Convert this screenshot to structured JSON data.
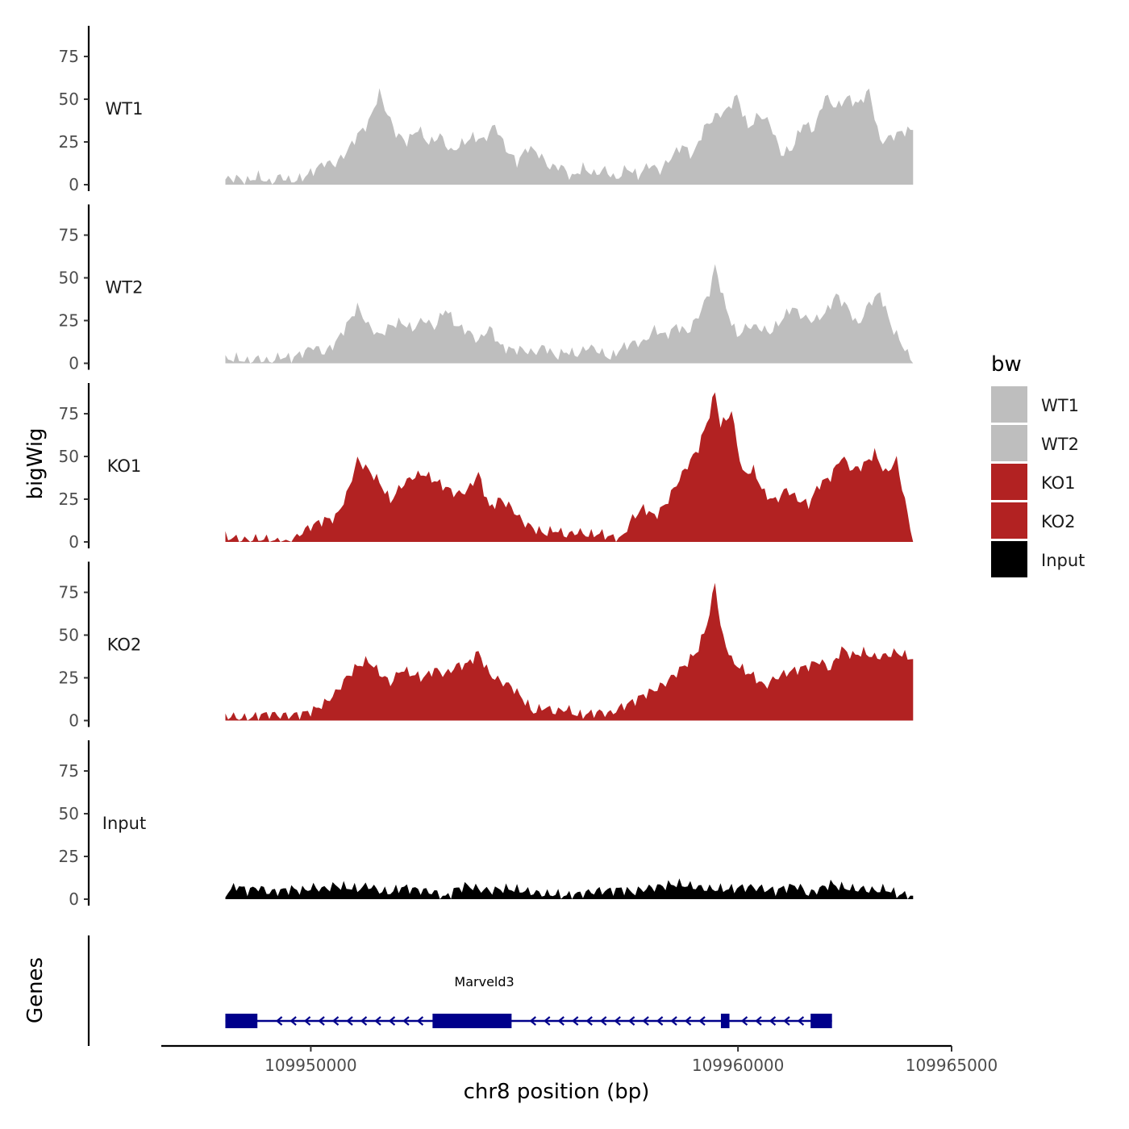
{
  "chart_data": {
    "type": "area",
    "title": "",
    "ylabel": "bigWig",
    "xlabel": "chr8 position (bp)",
    "genes_label": "Genes",
    "xlim": [
      109946500,
      109965000
    ],
    "data_range": [
      109948000,
      109964100
    ],
    "x_ticks": [
      109950000,
      109960000,
      109965000
    ],
    "x_tick_labels": [
      "109950000",
      "109960000",
      "109965000"
    ],
    "ylim": [
      0,
      92
    ],
    "y_ticks": [
      0,
      25,
      50,
      75
    ],
    "y_tick_labels": [
      "0",
      "25",
      "50",
      "75"
    ],
    "colors": {
      "WT": "#bebebe",
      "KO": "#b22222",
      "Input": "#000000",
      "gene": "#00008b"
    },
    "series": [
      {
        "name": "WT1",
        "color": "#bebebe",
        "profile": [
          [
            0,
            3
          ],
          [
            2,
            4
          ],
          [
            4,
            2
          ],
          [
            6,
            5
          ],
          [
            8,
            1
          ],
          [
            10,
            5
          ],
          [
            12,
            2
          ],
          [
            14,
            4
          ],
          [
            16,
            8
          ],
          [
            18,
            13
          ],
          [
            20,
            12
          ],
          [
            22,
            19
          ],
          [
            24,
            29
          ],
          [
            26,
            36
          ],
          [
            28,
            54
          ],
          [
            29,
            45
          ],
          [
            31,
            30
          ],
          [
            33,
            25
          ],
          [
            35,
            33
          ],
          [
            37,
            24
          ],
          [
            39,
            29
          ],
          [
            41,
            19
          ],
          [
            43,
            24
          ],
          [
            45,
            28
          ],
          [
            47,
            26
          ],
          [
            49,
            35
          ],
          [
            51,
            21
          ],
          [
            53,
            13
          ],
          [
            55,
            22
          ],
          [
            57,
            18
          ],
          [
            59,
            10
          ],
          [
            61,
            11
          ],
          [
            63,
            4
          ],
          [
            65,
            10
          ],
          [
            67,
            6
          ],
          [
            69,
            9
          ],
          [
            71,
            3
          ],
          [
            73,
            10
          ],
          [
            75,
            5
          ],
          [
            77,
            12
          ],
          [
            79,
            8
          ],
          [
            81,
            16
          ],
          [
            83,
            23
          ],
          [
            85,
            17
          ],
          [
            87,
            33
          ],
          [
            89,
            40
          ],
          [
            91,
            43
          ],
          [
            93,
            52
          ],
          [
            95,
            33
          ],
          [
            97,
            41
          ],
          [
            99,
            36
          ],
          [
            101,
            18
          ],
          [
            103,
            21
          ],
          [
            105,
            36
          ],
          [
            107,
            32
          ],
          [
            109,
            52
          ],
          [
            111,
            45
          ],
          [
            113,
            51
          ],
          [
            115,
            47
          ],
          [
            117,
            55
          ],
          [
            119,
            25
          ],
          [
            121,
            28
          ],
          [
            123,
            31
          ],
          [
            125,
            32
          ]
        ]
      },
      {
        "name": "WT2",
        "color": "#bebebe",
        "profile": [
          [
            0,
            2
          ],
          [
            2,
            3
          ],
          [
            4,
            1
          ],
          [
            6,
            3
          ],
          [
            8,
            1
          ],
          [
            10,
            4
          ],
          [
            12,
            3
          ],
          [
            14,
            6
          ],
          [
            16,
            10
          ],
          [
            18,
            6
          ],
          [
            20,
            12
          ],
          [
            22,
            22
          ],
          [
            24,
            33
          ],
          [
            26,
            22
          ],
          [
            28,
            16
          ],
          [
            30,
            22
          ],
          [
            32,
            24
          ],
          [
            34,
            20
          ],
          [
            36,
            26
          ],
          [
            38,
            21
          ],
          [
            40,
            32
          ],
          [
            42,
            22
          ],
          [
            44,
            19
          ],
          [
            46,
            13
          ],
          [
            48,
            21
          ],
          [
            50,
            10
          ],
          [
            52,
            8
          ],
          [
            54,
            8
          ],
          [
            56,
            6
          ],
          [
            58,
            10
          ],
          [
            60,
            4
          ],
          [
            62,
            7
          ],
          [
            64,
            5
          ],
          [
            66,
            10
          ],
          [
            68,
            7
          ],
          [
            70,
            3
          ],
          [
            72,
            9
          ],
          [
            74,
            12
          ],
          [
            76,
            12
          ],
          [
            78,
            20
          ],
          [
            80,
            16
          ],
          [
            82,
            22
          ],
          [
            84,
            18
          ],
          [
            86,
            28
          ],
          [
            88,
            42
          ],
          [
            89,
            57
          ],
          [
            91,
            32
          ],
          [
            93,
            16
          ],
          [
            95,
            22
          ],
          [
            97,
            21
          ],
          [
            99,
            18
          ],
          [
            101,
            25
          ],
          [
            103,
            33
          ],
          [
            105,
            27
          ],
          [
            107,
            25
          ],
          [
            109,
            29
          ],
          [
            111,
            40
          ],
          [
            113,
            33
          ],
          [
            115,
            22
          ],
          [
            117,
            35
          ],
          [
            119,
            41
          ],
          [
            121,
            22
          ],
          [
            125,
            0
          ]
        ]
      },
      {
        "name": "KO1",
        "color": "#b22222",
        "profile": [
          [
            0,
            3
          ],
          [
            2,
            2
          ],
          [
            4,
            1
          ],
          [
            6,
            2
          ],
          [
            8,
            1
          ],
          [
            10,
            0
          ],
          [
            12,
            0
          ],
          [
            14,
            6
          ],
          [
            16,
            10
          ],
          [
            18,
            13
          ],
          [
            20,
            14
          ],
          [
            22,
            27
          ],
          [
            24,
            48
          ],
          [
            26,
            42
          ],
          [
            28,
            35
          ],
          [
            30,
            24
          ],
          [
            32,
            33
          ],
          [
            34,
            38
          ],
          [
            36,
            40
          ],
          [
            38,
            36
          ],
          [
            40,
            32
          ],
          [
            42,
            28
          ],
          [
            44,
            30
          ],
          [
            46,
            40
          ],
          [
            48,
            20
          ],
          [
            50,
            25
          ],
          [
            52,
            20
          ],
          [
            54,
            12
          ],
          [
            56,
            8
          ],
          [
            58,
            5
          ],
          [
            60,
            7
          ],
          [
            62,
            4
          ],
          [
            64,
            6
          ],
          [
            66,
            4
          ],
          [
            68,
            5
          ],
          [
            70,
            3
          ],
          [
            72,
            2
          ],
          [
            74,
            14
          ],
          [
            76,
            20
          ],
          [
            78,
            15
          ],
          [
            80,
            22
          ],
          [
            82,
            34
          ],
          [
            84,
            45
          ],
          [
            86,
            55
          ],
          [
            88,
            75
          ],
          [
            89,
            88
          ],
          [
            90,
            68
          ],
          [
            92,
            76
          ],
          [
            94,
            40
          ],
          [
            96,
            42
          ],
          [
            98,
            28
          ],
          [
            100,
            24
          ],
          [
            102,
            31
          ],
          [
            104,
            25
          ],
          [
            106,
            22
          ],
          [
            108,
            34
          ],
          [
            110,
            38
          ],
          [
            112,
            50
          ],
          [
            114,
            42
          ],
          [
            116,
            45
          ],
          [
            118,
            52
          ],
          [
            120,
            40
          ],
          [
            122,
            48
          ],
          [
            125,
            0
          ]
        ]
      },
      {
        "name": "KO2",
        "color": "#b22222",
        "profile": [
          [
            0,
            3
          ],
          [
            2,
            2
          ],
          [
            4,
            1
          ],
          [
            6,
            3
          ],
          [
            8,
            4
          ],
          [
            10,
            3
          ],
          [
            12,
            3
          ],
          [
            14,
            4
          ],
          [
            16,
            6
          ],
          [
            18,
            10
          ],
          [
            20,
            16
          ],
          [
            22,
            25
          ],
          [
            24,
            32
          ],
          [
            26,
            35
          ],
          [
            28,
            28
          ],
          [
            30,
            22
          ],
          [
            32,
            30
          ],
          [
            34,
            27
          ],
          [
            36,
            25
          ],
          [
            38,
            30
          ],
          [
            40,
            27
          ],
          [
            42,
            32
          ],
          [
            44,
            33
          ],
          [
            46,
            40
          ],
          [
            48,
            27
          ],
          [
            50,
            23
          ],
          [
            52,
            20
          ],
          [
            54,
            13
          ],
          [
            56,
            5
          ],
          [
            58,
            8
          ],
          [
            60,
            5
          ],
          [
            62,
            7
          ],
          [
            64,
            3
          ],
          [
            66,
            4
          ],
          [
            68,
            5
          ],
          [
            70,
            4
          ],
          [
            72,
            8
          ],
          [
            74,
            11
          ],
          [
            76,
            15
          ],
          [
            78,
            18
          ],
          [
            80,
            22
          ],
          [
            82,
            28
          ],
          [
            84,
            34
          ],
          [
            86,
            42
          ],
          [
            88,
            62
          ],
          [
            89,
            82
          ],
          [
            90,
            54
          ],
          [
            92,
            35
          ],
          [
            94,
            30
          ],
          [
            96,
            26
          ],
          [
            98,
            20
          ],
          [
            100,
            25
          ],
          [
            102,
            28
          ],
          [
            104,
            30
          ],
          [
            106,
            32
          ],
          [
            108,
            35
          ],
          [
            110,
            30
          ],
          [
            112,
            42
          ],
          [
            114,
            38
          ],
          [
            116,
            40
          ],
          [
            118,
            37
          ],
          [
            120,
            38
          ],
          [
            122,
            40
          ],
          [
            125,
            36
          ]
        ]
      },
      {
        "name": "Input",
        "color": "#000000",
        "profile": [
          [
            0,
            3
          ],
          [
            2,
            8
          ],
          [
            4,
            5
          ],
          [
            6,
            7
          ],
          [
            8,
            4
          ],
          [
            10,
            5
          ],
          [
            12,
            6
          ],
          [
            14,
            5
          ],
          [
            16,
            7
          ],
          [
            18,
            6
          ],
          [
            20,
            8
          ],
          [
            22,
            7
          ],
          [
            24,
            6
          ],
          [
            26,
            8
          ],
          [
            28,
            5
          ],
          [
            30,
            4
          ],
          [
            32,
            7
          ],
          [
            34,
            6
          ],
          [
            36,
            5
          ],
          [
            38,
            4
          ],
          [
            40,
            1
          ],
          [
            42,
            6
          ],
          [
            44,
            8
          ],
          [
            46,
            6
          ],
          [
            48,
            5
          ],
          [
            50,
            6
          ],
          [
            52,
            6
          ],
          [
            54,
            5
          ],
          [
            56,
            4
          ],
          [
            58,
            3
          ],
          [
            60,
            3
          ],
          [
            62,
            2
          ],
          [
            64,
            3
          ],
          [
            66,
            4
          ],
          [
            68,
            5
          ],
          [
            70,
            5
          ],
          [
            72,
            6
          ],
          [
            74,
            4
          ],
          [
            76,
            6
          ],
          [
            78,
            7
          ],
          [
            80,
            8
          ],
          [
            82,
            9
          ],
          [
            84,
            8
          ],
          [
            86,
            7
          ],
          [
            88,
            6
          ],
          [
            90,
            6
          ],
          [
            92,
            6
          ],
          [
            94,
            7
          ],
          [
            96,
            7
          ],
          [
            98,
            6
          ],
          [
            100,
            5
          ],
          [
            102,
            7
          ],
          [
            104,
            8
          ],
          [
            106,
            3
          ],
          [
            108,
            6
          ],
          [
            110,
            9
          ],
          [
            112,
            7
          ],
          [
            114,
            6
          ],
          [
            116,
            6
          ],
          [
            118,
            5
          ],
          [
            120,
            6
          ],
          [
            122,
            3
          ],
          [
            125,
            2
          ]
        ]
      }
    ],
    "gene": {
      "name": "Marveld3",
      "strand": "-",
      "start": 109948000,
      "end": 109962200,
      "exons": [
        [
          109948000,
          109948750
        ],
        [
          109952850,
          109954700
        ],
        [
          109959600,
          109959800
        ],
        [
          109961700,
          109962200
        ]
      ]
    },
    "legend": {
      "title": "bw",
      "position": "right",
      "items": [
        {
          "label": "WT1",
          "color": "#bebebe"
        },
        {
          "label": "WT2",
          "color": "#bebebe"
        },
        {
          "label": "KO1",
          "color": "#b22222"
        },
        {
          "label": "KO2",
          "color": "#b22222"
        },
        {
          "label": "Input",
          "color": "#000000"
        }
      ]
    }
  }
}
